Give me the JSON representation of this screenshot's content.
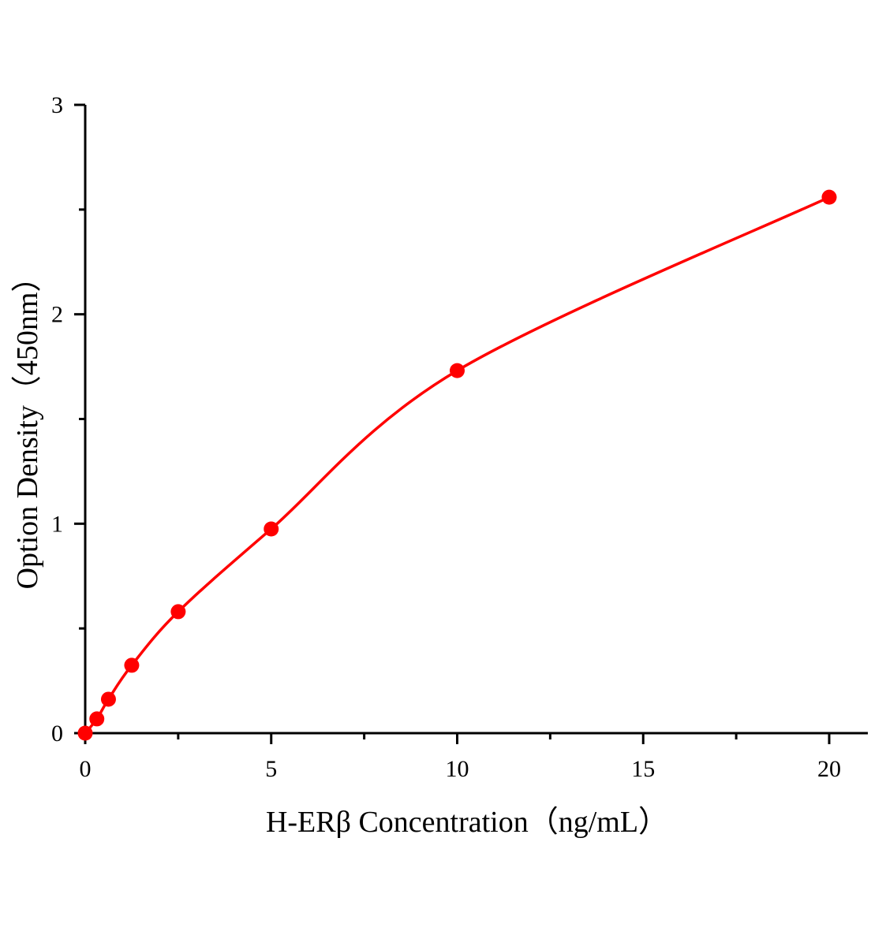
{
  "chart_data": {
    "type": "scatter",
    "title": "",
    "xlabel": "H-ERβ Concentration（ng/mL）",
    "ylabel": "Option Density（450nm）",
    "xlim": [
      0,
      21
    ],
    "ylim": [
      0,
      3
    ],
    "xticks": [
      "0",
      "5",
      "10",
      "15",
      "20"
    ],
    "yticks": [
      "0",
      "1",
      "2",
      "3"
    ],
    "grid": false,
    "legend": "none",
    "color": "#ff0000",
    "series": [
      {
        "x": [
          0,
          0.3125,
          0.625,
          1.25,
          2.5,
          5,
          10,
          20
        ],
        "y": [
          0.0,
          0.068,
          0.162,
          0.324,
          0.58,
          0.975,
          1.731,
          2.559
        ],
        "fit_curve": true
      }
    ]
  }
}
